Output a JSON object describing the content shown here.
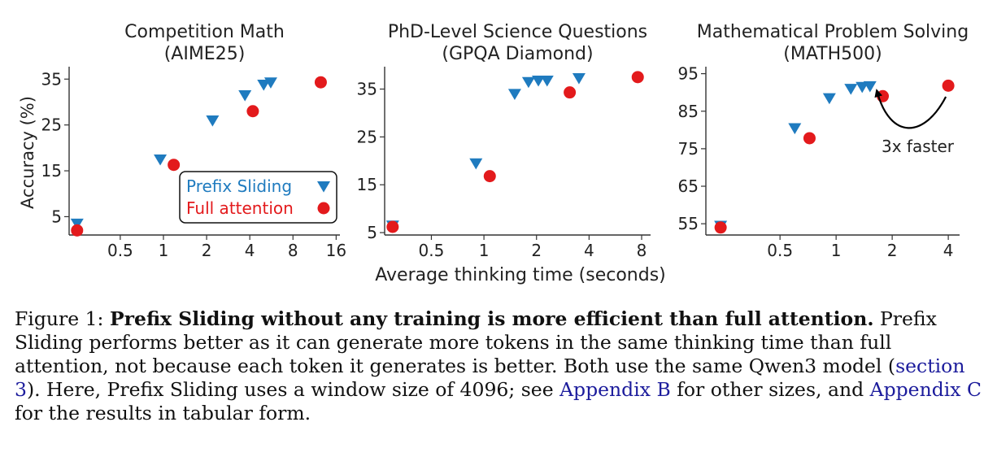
{
  "chart_data": [
    {
      "type": "scatter",
      "title": "Competition Math\n(AIME25)",
      "ylabel": "Accuracy (%)",
      "xscale": "log2",
      "xlim": [
        0.22,
        17
      ],
      "ylim": [
        1,
        37
      ],
      "xticks": [
        0.5,
        1,
        2,
        4,
        8,
        16
      ],
      "xtick_labels": [
        "0.5",
        "1",
        "2",
        "4",
        "8",
        "16"
      ],
      "yticks": [
        5,
        15,
        25,
        35
      ],
      "yticks_labels": [
        "5",
        "15",
        "25",
        "35"
      ],
      "series": [
        {
          "name": "Prefix Sliding",
          "marker": "triangle-down",
          "color": "#1f7bbf",
          "x": [
            0.25,
            0.95,
            2.2,
            3.7,
            5.0,
            5.6
          ],
          "y": [
            3.5,
            17.5,
            26.0,
            31.5,
            33.8,
            34.3
          ]
        },
        {
          "name": "Full attention",
          "marker": "circle",
          "color": "#e31a1c",
          "x": [
            0.25,
            1.18,
            4.2,
            12.5
          ],
          "y": [
            2.0,
            16.3,
            28.0,
            34.3
          ]
        }
      ],
      "legend": "lower-right"
    },
    {
      "type": "scatter",
      "title": "PhD-Level Science Questions\n(GPQA Diamond)",
      "ylabel": "",
      "xscale": "log2",
      "xlim": [
        0.27,
        9
      ],
      "ylim": [
        4.5,
        39
      ],
      "xticks": [
        0.5,
        1,
        2,
        4,
        8
      ],
      "xtick_labels": [
        "0.5",
        "1",
        "2",
        "4",
        "8"
      ],
      "yticks": [
        5,
        15,
        25,
        35
      ],
      "yticks_labels": [
        "5",
        "15",
        "25",
        "35"
      ],
      "series": [
        {
          "name": "Prefix Sliding",
          "marker": "triangle-down",
          "color": "#1f7bbf",
          "x": [
            0.3,
            0.9,
            1.5,
            1.8,
            2.05,
            2.3,
            3.5
          ],
          "y": [
            6.5,
            19.5,
            34.0,
            36.5,
            36.8,
            36.8,
            37.3
          ]
        },
        {
          "name": "Full attention",
          "marker": "circle",
          "color": "#e31a1c",
          "x": [
            0.3,
            1.08,
            3.1,
            7.6
          ],
          "y": [
            6.2,
            16.8,
            34.3,
            37.5
          ]
        }
      ]
    },
    {
      "type": "scatter",
      "title": "Mathematical Problem Solving\n(MATH500)",
      "ylabel": "",
      "xscale": "log2",
      "xlim": [
        0.2,
        4.6
      ],
      "ylim": [
        52,
        96
      ],
      "xticks": [
        0.5,
        1,
        2,
        4
      ],
      "xtick_labels": [
        "0.5",
        "1",
        "2",
        "4"
      ],
      "yticks": [
        55,
        65,
        75,
        85,
        95
      ],
      "yticks_labels": [
        "55",
        "65",
        "75",
        "85",
        "95"
      ],
      "series": [
        {
          "name": "Prefix Sliding",
          "marker": "triangle-down",
          "color": "#1f7bbf",
          "x": [
            0.24,
            0.6,
            0.92,
            1.2,
            1.38,
            1.52
          ],
          "y": [
            54.5,
            80.5,
            88.5,
            91.0,
            91.5,
            91.7
          ]
        },
        {
          "name": "Full attention",
          "marker": "circle",
          "color": "#e31a1c",
          "x": [
            0.24,
            0.72,
            1.78,
            4.0
          ],
          "y": [
            54.0,
            77.8,
            89.0,
            91.8
          ]
        }
      ],
      "annotation": {
        "text": "3x faster",
        "arrow_from": [
          4.0,
          89.5
        ],
        "arrow_to": [
          1.6,
          89.5
        ]
      }
    }
  ],
  "shared_xlabel": "Average thinking time (seconds)",
  "legend_labels": [
    "Prefix Sliding",
    "Full attention"
  ],
  "colors": {
    "prefix": "#1f7bbf",
    "full": "#e31a1c"
  },
  "caption": {
    "figure_label": "Figure 1: ",
    "bold": "Prefix Sliding without any training is more efficient than full attention.",
    "text_1": " Prefix Sliding performs better as it can generate more tokens in the same thinking time than full attention, not because each token it generates is better. Both use the same Qwen3 model (",
    "link_1": "section 3",
    "text_2": "). Here, Prefix Sliding uses a window size of 4096; see ",
    "link_2": "Appendix B",
    "text_3": " for other sizes, and ",
    "link_3": "Appendix C",
    "text_4": " for the results in tabular form."
  }
}
